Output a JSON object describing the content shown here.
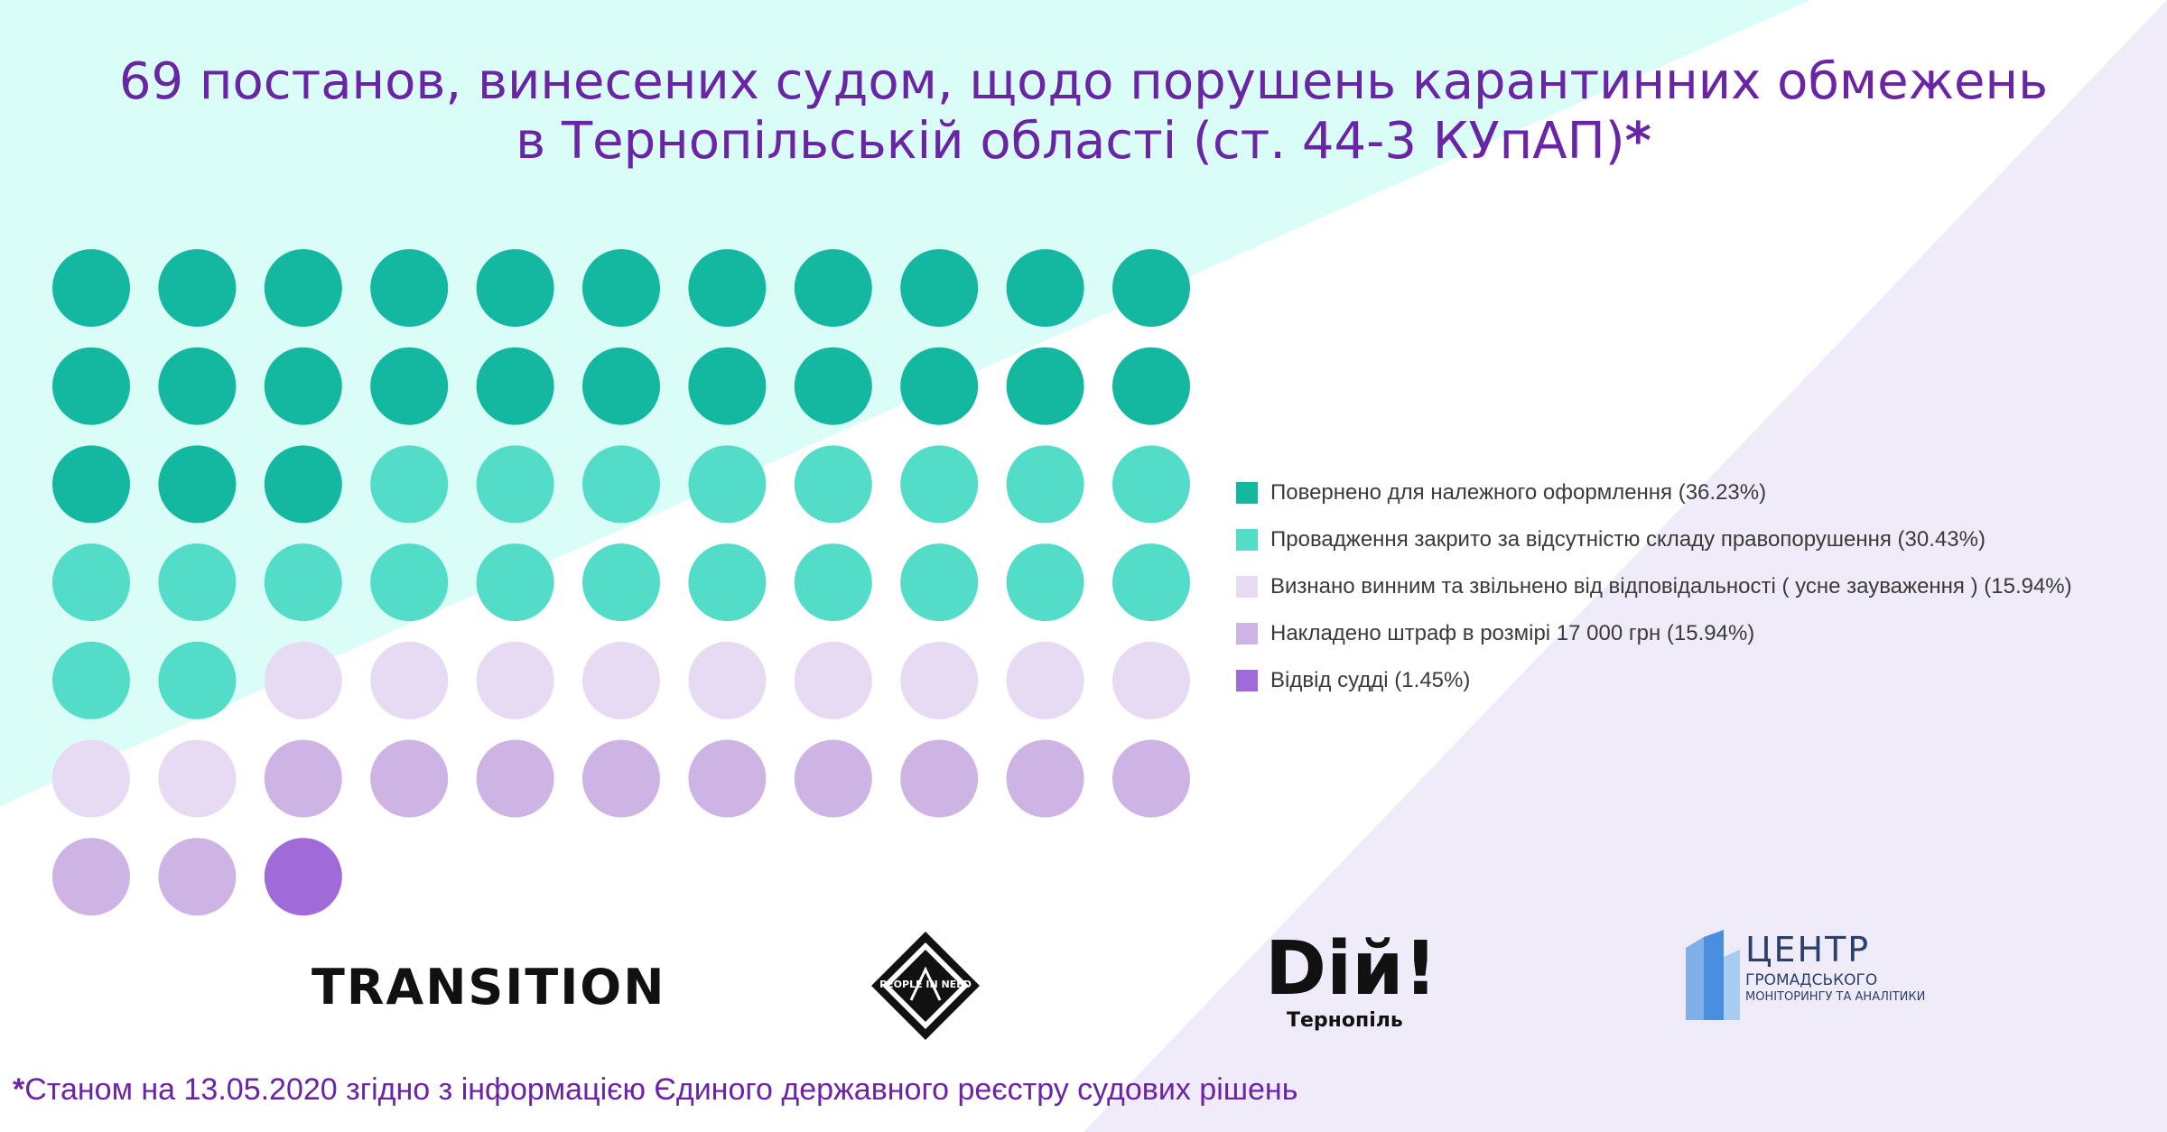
{
  "title": {
    "line1": "69 постанов, винесених судом, щодо порушень карантинних обмежень",
    "line2": "в Тернопільській області (ст. 44-3 КУпАП)",
    "asterisk": "*"
  },
  "colors": {
    "background_teal": "#dafdf8",
    "background_lavender": "#f0ebf8",
    "title": "#6a25a6"
  },
  "chart_data": {
    "type": "waffle",
    "total": 69,
    "units_per_row": 11,
    "categories": [
      {
        "label": "Повернено для належного оформлення (36.23%)",
        "count": 25,
        "percent": 36.23,
        "color": "#14b8a0"
      },
      {
        "label": "Провадження закрито за відсутністю складу правопорушення (30.43%)",
        "count": 21,
        "percent": 30.43,
        "color": "#53dcc7"
      },
      {
        "label": "Визнано винним та звільнено від відповідальності ( усне зауваження ) (15.94%)",
        "count": 11,
        "percent": 15.94,
        "color": "#e7daf3"
      },
      {
        "label": "Накладено штраф в розмірі 17 000 грн (15.94%)",
        "count": 11,
        "percent": 15.94,
        "color": "#cdb4e4"
      },
      {
        "label": "Відвід судді (1.45%)",
        "count": 1,
        "percent": 1.45,
        "color": "#a16ad9"
      }
    ]
  },
  "logos": {
    "transition": {
      "text": "TRANSITION",
      "icon": "transition-logo"
    },
    "people_in_need": {
      "text": "PEOPLE IN NEED",
      "icon": "people-in-need-logo"
    },
    "diy": {
      "word": "Dій!",
      "sub": "Тернопіль",
      "icon": "diy-logo"
    },
    "center": {
      "line1": "ЦЕНТР",
      "line2": "ГРОМАДСЬКОГО",
      "line3": "МОНІТОРИНГУ ТА АНАЛІТИКИ",
      "icon": "center-logo"
    }
  },
  "footnote": {
    "asterisk": "*",
    "text": "Станом на 13.05.2020 згідно з інформацією Єдиного державного реєстру судових рішень"
  }
}
